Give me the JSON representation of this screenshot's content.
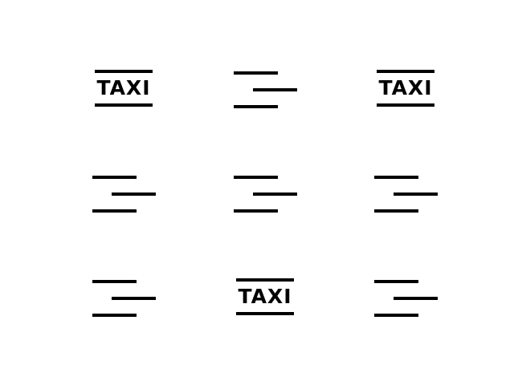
{
  "grid": {
    "rows": 3,
    "cols": 3,
    "tiles": [
      {
        "row": 0,
        "col": 0,
        "kind": "taxi",
        "text": "TAXI",
        "icon": "taxi-sign-icon"
      },
      {
        "row": 0,
        "col": 1,
        "kind": "lines",
        "text": "",
        "icon": "staggered-lines-icon"
      },
      {
        "row": 0,
        "col": 2,
        "kind": "taxi",
        "text": "TAXI",
        "icon": "taxi-sign-icon"
      },
      {
        "row": 1,
        "col": 0,
        "kind": "lines",
        "text": "",
        "icon": "staggered-lines-icon"
      },
      {
        "row": 1,
        "col": 1,
        "kind": "lines",
        "text": "",
        "icon": "staggered-lines-icon"
      },
      {
        "row": 1,
        "col": 2,
        "kind": "lines",
        "text": "",
        "icon": "staggered-lines-icon"
      },
      {
        "row": 2,
        "col": 0,
        "kind": "lines",
        "text": "",
        "icon": "staggered-lines-icon"
      },
      {
        "row": 2,
        "col": 1,
        "kind": "taxi",
        "text": "TAXI",
        "icon": "taxi-sign-icon"
      },
      {
        "row": 2,
        "col": 2,
        "kind": "lines",
        "text": "",
        "icon": "staggered-lines-icon"
      }
    ]
  },
  "colors": {
    "background": "#ffffff",
    "ink": "#000000"
  }
}
